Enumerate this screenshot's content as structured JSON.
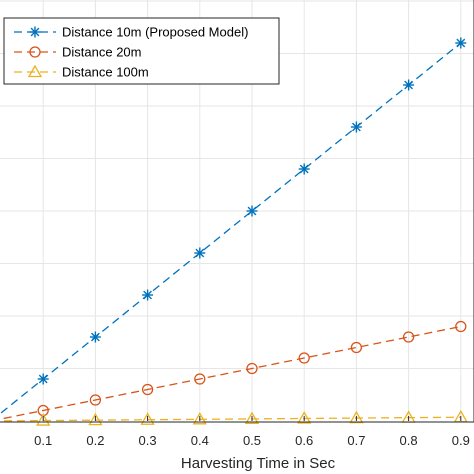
{
  "chart_data": {
    "type": "line",
    "xlabel": "Harvesting Time in Sec",
    "ylabel": "",
    "title": "",
    "x": [
      0,
      0.1,
      0.2,
      0.3,
      0.4,
      0.5,
      0.6,
      0.7,
      0.8,
      0.9
    ],
    "x_ticks": [
      "0.1",
      "0.2",
      "0.3",
      "0.4",
      "0.5",
      "0.6",
      "0.7",
      "0.8",
      "0.9"
    ],
    "xlim": [
      0,
      0.9
    ],
    "ylim": [
      0,
      8
    ],
    "grid": true,
    "legend_position": "top-left",
    "series": [
      {
        "name": "Distance 10m (Proposed Model)",
        "marker": "star",
        "color": "#0072BD",
        "values": [
          0,
          0.8,
          1.6,
          2.4,
          3.2,
          4.0,
          4.8,
          5.6,
          6.4,
          7.2
        ]
      },
      {
        "name": "Distance 20m",
        "marker": "circle",
        "color": "#D95319",
        "values": [
          0,
          0.2,
          0.4,
          0.6,
          0.8,
          1.0,
          1.2,
          1.4,
          1.6,
          1.8
        ]
      },
      {
        "name": "Distance 100m",
        "marker": "triangle",
        "color": "#EDB120",
        "values": [
          0,
          0.008,
          0.016,
          0.024,
          0.032,
          0.04,
          0.048,
          0.056,
          0.064,
          0.072
        ]
      }
    ]
  }
}
